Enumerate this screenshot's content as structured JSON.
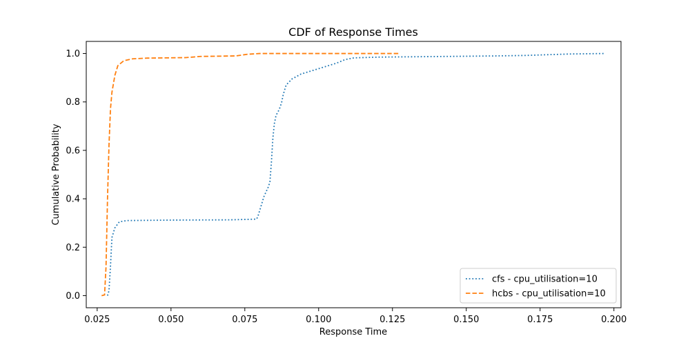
{
  "chart_data": {
    "type": "line",
    "title": "CDF of Response Times",
    "xlabel": "Response Time",
    "ylabel": "Cumulative Probability",
    "xlim": [
      0.0213,
      0.2024
    ],
    "ylim": [
      -0.05,
      1.05
    ],
    "x_ticks": [
      0.025,
      0.05,
      0.075,
      0.1,
      0.125,
      0.15,
      0.175,
      0.2
    ],
    "x_tick_labels": [
      "0.025",
      "0.050",
      "0.075",
      "0.100",
      "0.125",
      "0.150",
      "0.175",
      "0.200"
    ],
    "y_ticks": [
      0.0,
      0.2,
      0.4,
      0.6,
      0.8,
      1.0
    ],
    "y_tick_labels": [
      "0.0",
      "0.2",
      "0.4",
      "0.6",
      "0.8",
      "1.0"
    ],
    "grid": false,
    "legend_position": "bottom-right",
    "series": [
      {
        "name": "cfs - cpu_utilisation=10",
        "color": "#1f77b4",
        "style": "dotted",
        "points": [
          [
            0.0285,
            0.0
          ],
          [
            0.029,
            0.02
          ],
          [
            0.0295,
            0.12
          ],
          [
            0.03,
            0.24
          ],
          [
            0.031,
            0.28
          ],
          [
            0.0325,
            0.305
          ],
          [
            0.035,
            0.31
          ],
          [
            0.05,
            0.312
          ],
          [
            0.07,
            0.313
          ],
          [
            0.079,
            0.316
          ],
          [
            0.0795,
            0.33
          ],
          [
            0.0805,
            0.37
          ],
          [
            0.0815,
            0.41
          ],
          [
            0.083,
            0.45
          ],
          [
            0.0835,
            0.47
          ],
          [
            0.084,
            0.55
          ],
          [
            0.0845,
            0.65
          ],
          [
            0.085,
            0.71
          ],
          [
            0.0855,
            0.74
          ],
          [
            0.086,
            0.755
          ],
          [
            0.0865,
            0.765
          ],
          [
            0.087,
            0.78
          ],
          [
            0.0875,
            0.8
          ],
          [
            0.088,
            0.83
          ],
          [
            0.089,
            0.87
          ],
          [
            0.091,
            0.895
          ],
          [
            0.094,
            0.915
          ],
          [
            0.098,
            0.93
          ],
          [
            0.102,
            0.945
          ],
          [
            0.106,
            0.96
          ],
          [
            0.109,
            0.975
          ],
          [
            0.112,
            0.982
          ],
          [
            0.12,
            0.985
          ],
          [
            0.16,
            0.99
          ],
          [
            0.17,
            0.992
          ],
          [
            0.175,
            0.994
          ],
          [
            0.185,
            0.998
          ],
          [
            0.197,
            1.0
          ]
        ]
      },
      {
        "name": "hcbs - cpu_utilisation=10",
        "color": "#ff7f0e",
        "style": "dashed",
        "points": [
          [
            0.0265,
            0.0
          ],
          [
            0.0275,
            0.003
          ],
          [
            0.028,
            0.12
          ],
          [
            0.0285,
            0.4
          ],
          [
            0.029,
            0.62
          ],
          [
            0.0295,
            0.77
          ],
          [
            0.03,
            0.84
          ],
          [
            0.031,
            0.91
          ],
          [
            0.032,
            0.95
          ],
          [
            0.034,
            0.97
          ],
          [
            0.037,
            0.978
          ],
          [
            0.042,
            0.981
          ],
          [
            0.055,
            0.983
          ],
          [
            0.058,
            0.986
          ],
          [
            0.06,
            0.988
          ],
          [
            0.072,
            0.99
          ],
          [
            0.076,
            0.997
          ],
          [
            0.08,
            1.0
          ],
          [
            0.127,
            1.0
          ]
        ]
      }
    ]
  }
}
